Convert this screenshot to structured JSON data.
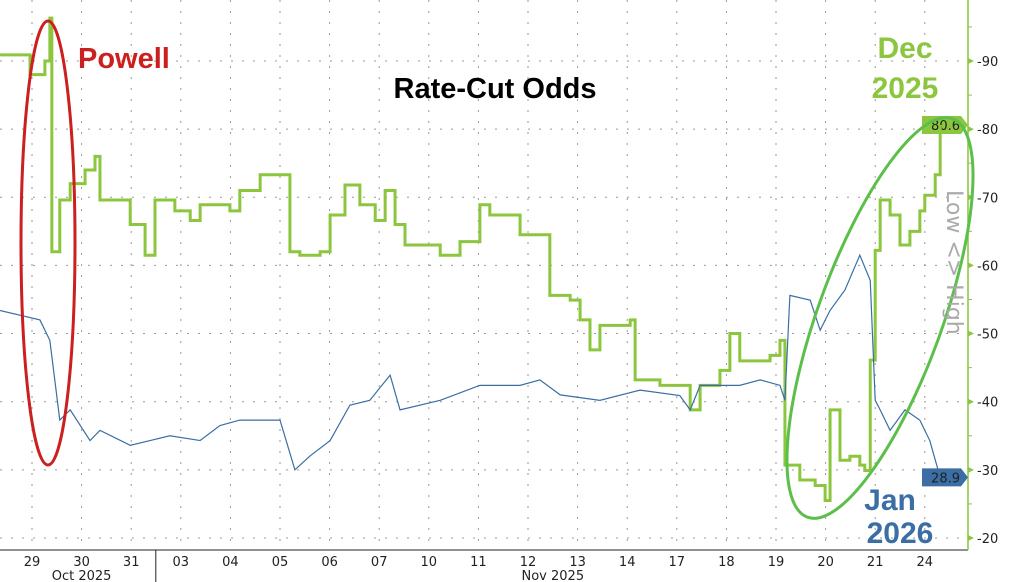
{
  "chart_data": {
    "type": "line",
    "title": "Rate-Cut Odds",
    "annotations": {
      "powell": "Powell",
      "dec_line1": "Dec",
      "dec_line2": "2025",
      "jan_line1": "Jan",
      "jan_line2": "2026"
    },
    "ylabel": "Low <> High",
    "ylim": [
      17,
      100
    ],
    "yticks": [
      20,
      30,
      40,
      50,
      60,
      70,
      80,
      90
    ],
    "grid": true,
    "x_categories": [
      "29",
      "30",
      "31",
      "03",
      "04",
      "05",
      "06",
      "07",
      "10",
      "11",
      "12",
      "13",
      "14",
      "17",
      "18",
      "19",
      "20",
      "21",
      "24"
    ],
    "x_month_labels": [
      {
        "label": "Oct 2025",
        "from": 0,
        "to": 2
      },
      {
        "label": "Nov 2025",
        "from": 3,
        "to": 18
      }
    ],
    "colors": {
      "dec": "#8cc63f",
      "jan": "#3a6ea5",
      "powell": "#cc1f1f",
      "dec_ellipse": "#5cbf4a"
    },
    "series": [
      {
        "name": "Dec 2025",
        "last_value": "80.6",
        "step": true,
        "x": [
          -0.65,
          -0.04,
          0.26,
          0.36,
          0.4,
          0.56,
          0.77,
          1.07,
          1.27,
          1.37,
          1.77,
          1.98,
          2.28,
          2.48,
          2.88,
          3.19,
          3.39,
          3.99,
          4.19,
          4.6,
          4.9,
          5.2,
          5.4,
          5.81,
          6.01,
          6.31,
          6.61,
          6.92,
          7.12,
          7.32,
          7.52,
          8.02,
          8.23,
          8.63,
          9.03,
          9.23,
          9.64,
          9.84,
          10.34,
          10.44,
          10.85,
          11.05,
          11.25,
          11.45,
          12.06,
          12.16,
          12.66,
          13.06,
          13.27,
          13.47,
          13.87,
          14.07,
          14.27,
          14.88,
          15.08,
          15.18,
          15.48,
          15.79,
          15.99,
          16.09,
          16.29,
          16.49,
          16.69,
          16.79,
          16.9,
          17.0,
          17.1,
          17.3,
          17.5,
          17.7,
          17.9,
          18.0,
          18.21,
          18.31
        ],
        "y": [
          90.9,
          88,
          90,
          96.3,
          62,
          69.6,
          72,
          74,
          76,
          69.6,
          69.6,
          66,
          61.5,
          69.6,
          68,
          66.6,
          68.9,
          68,
          71,
          73.3,
          73.3,
          62,
          61.5,
          62,
          67.4,
          71.8,
          68.9,
          66.6,
          71,
          66,
          63,
          63,
          61.5,
          63.5,
          68.9,
          67.4,
          67.4,
          64.5,
          64.5,
          55.6,
          54.9,
          52,
          47.6,
          51.2,
          52,
          43.2,
          42.4,
          42.4,
          38.8,
          42.4,
          44.6,
          50,
          46,
          46.8,
          49,
          30.7,
          28.5,
          27.7,
          25.5,
          38.8,
          31.4,
          32,
          30.7,
          29.9,
          46.1,
          62.2,
          69.6,
          67.4,
          63,
          65,
          68,
          70.3,
          73.3,
          80.6
        ]
      },
      {
        "name": "Jan 2026",
        "last_value": "28.9",
        "step": false,
        "x": [
          -0.65,
          0.16,
          0.36,
          0.56,
          0.77,
          1.17,
          1.37,
          1.98,
          2.38,
          2.78,
          3.39,
          3.79,
          4.19,
          5.0,
          5.3,
          5.6,
          6.01,
          6.41,
          6.81,
          7.22,
          7.42,
          8.23,
          9.03,
          9.84,
          10.24,
          10.65,
          11.45,
          12.26,
          13.06,
          13.27,
          13.47,
          14.27,
          14.68,
          15.08,
          15.18,
          15.28,
          15.69,
          15.89,
          16.09,
          16.39,
          16.69,
          16.9,
          17.0,
          17.1,
          17.3,
          17.6,
          17.9,
          18.1,
          18.31
        ],
        "y": [
          53.4,
          52,
          49,
          37.3,
          38.8,
          34.3,
          35.8,
          33.6,
          34.3,
          35,
          34.3,
          36.5,
          37.3,
          37.3,
          30,
          32,
          34.3,
          39.5,
          40.2,
          43.9,
          38.8,
          40.2,
          42.4,
          42.4,
          43.2,
          41,
          40.2,
          41.7,
          40.9,
          38.8,
          42.4,
          42.4,
          43.2,
          42.4,
          40.2,
          55.6,
          54.9,
          50.5,
          53.4,
          56.4,
          61.5,
          57.8,
          40.2,
          38.8,
          35.8,
          38.8,
          37.3,
          34.3,
          28.9
        ]
      }
    ]
  }
}
